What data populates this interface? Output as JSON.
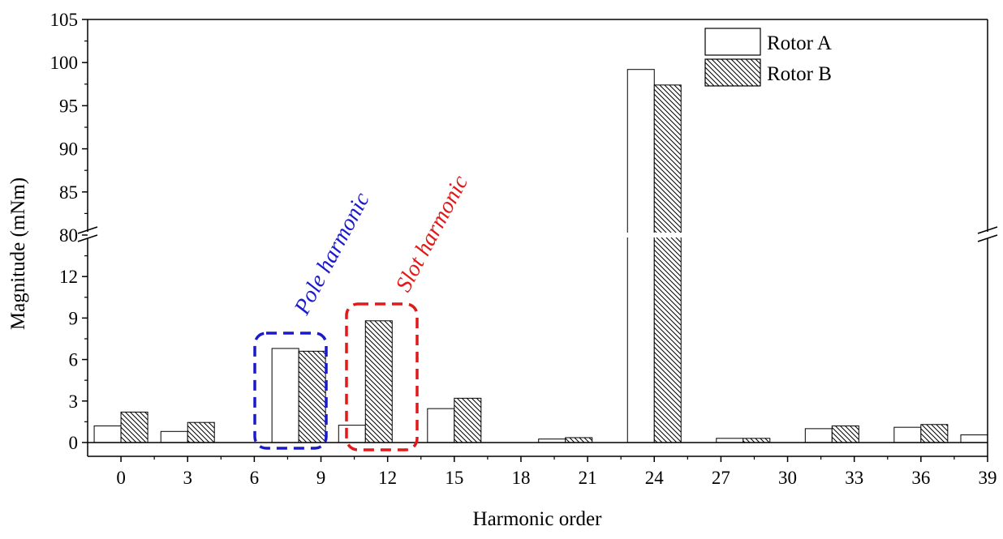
{
  "chart_data": {
    "type": "bar",
    "xlabel": "Harmonic order",
    "ylabel": "Magnitude (mNm)",
    "x_ticks": [
      "0",
      "3",
      "6",
      "9",
      "12",
      "15",
      "18",
      "21",
      "24",
      "27",
      "30",
      "33",
      "36",
      "39"
    ],
    "y_ticks_lower": [
      "0",
      "3",
      "6",
      "9",
      "12"
    ],
    "y_ticks_upper": [
      "80",
      "85",
      "90",
      "95",
      "100",
      "105"
    ],
    "lower_ylim": [
      -1,
      15
    ],
    "upper_ylim": [
      80,
      105
    ],
    "axis_break": true,
    "legend_position": "top-right",
    "series": [
      {
        "name": "Rotor A",
        "style": "open",
        "x": [
          0,
          3,
          8,
          11,
          15,
          20,
          24,
          28,
          32,
          36,
          39
        ],
        "values": [
          1.2,
          0.8,
          6.8,
          1.25,
          2.45,
          0.25,
          99.2,
          0.3,
          1.0,
          1.1,
          0.55
        ]
      },
      {
        "name": "Rotor B",
        "style": "hatched",
        "x": [
          0,
          3,
          8,
          11,
          15,
          20,
          24,
          28,
          32,
          36
        ],
        "values": [
          2.2,
          1.45,
          6.6,
          8.8,
          3.2,
          0.35,
          97.4,
          0.3,
          1.2,
          1.3
        ]
      }
    ],
    "annotations": [
      {
        "text": "Pole harmonic",
        "color": "#1a1acc"
      },
      {
        "text": "Slot harmonic",
        "color": "#e01919"
      }
    ]
  }
}
